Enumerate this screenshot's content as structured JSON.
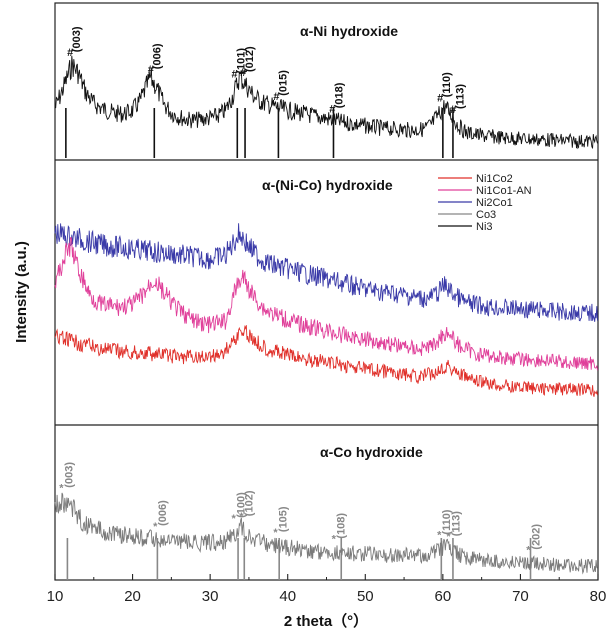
{
  "chart_data": {
    "type": "line",
    "xlabel": "2 theta（°）",
    "ylabel": "Intensity (a.u.)",
    "xlim": [
      10,
      80
    ],
    "xticks": [
      "10",
      "20",
      "30",
      "40",
      "50",
      "60",
      "70",
      "80"
    ],
    "grid": false,
    "legend_position": "middle-right",
    "panels": [
      {
        "title": "α-Ni hydroxide",
        "marker": "#",
        "marker_color": "#111111",
        "series": [
          {
            "color": "#111111",
            "points": [
              [
                10,
                0.38
              ],
              [
                11,
                0.55
              ],
              [
                12.2,
                0.78
              ],
              [
                13,
                0.7
              ],
              [
                14,
                0.52
              ],
              [
                15,
                0.42
              ],
              [
                16,
                0.38
              ],
              [
                17,
                0.35
              ],
              [
                18,
                0.33
              ],
              [
                19,
                0.33
              ],
              [
                20,
                0.36
              ],
              [
                21,
                0.45
              ],
              [
                22.3,
                0.66
              ],
              [
                23,
                0.58
              ],
              [
                24,
                0.42
              ],
              [
                25,
                0.34
              ],
              [
                26,
                0.3
              ],
              [
                27,
                0.28
              ],
              [
                28,
                0.27
              ],
              [
                29,
                0.28
              ],
              [
                30,
                0.29
              ],
              [
                31,
                0.31
              ],
              [
                32,
                0.36
              ],
              [
                33,
                0.5
              ],
              [
                33.8,
                0.67
              ],
              [
                34.5,
                0.6
              ],
              [
                35.5,
                0.5
              ],
              [
                36.5,
                0.44
              ],
              [
                38,
                0.4
              ],
              [
                40,
                0.36
              ],
              [
                42,
                0.33
              ],
              [
                44,
                0.3
              ],
              [
                46,
                0.27
              ],
              [
                48,
                0.24
              ],
              [
                50,
                0.22
              ],
              [
                52,
                0.2
              ],
              [
                54,
                0.19
              ],
              [
                56,
                0.18
              ],
              [
                57.5,
                0.19
              ],
              [
                58.5,
                0.23
              ],
              [
                59.5,
                0.33
              ],
              [
                60.2,
                0.4
              ],
              [
                61,
                0.33
              ],
              [
                62,
                0.22
              ],
              [
                63,
                0.16
              ],
              [
                65,
                0.13
              ],
              [
                68,
                0.11
              ],
              [
                71,
                0.1
              ],
              [
                74,
                0.09
              ],
              [
                77,
                0.08
              ],
              [
                80,
                0.08
              ]
            ]
          }
        ],
        "reference_lines": [
          11.4,
          22.8,
          33.5,
          34.5,
          38.8,
          45.9,
          60,
          61.3
        ],
        "peaks": [
          {
            "label": "(003)",
            "x": 12.2
          },
          {
            "label": "(006)",
            "x": 22.6
          },
          {
            "label": "(101)",
            "x": 33.4
          },
          {
            "label": "(012)",
            "x": 34.5
          },
          {
            "label": "(015)",
            "x": 38.8
          },
          {
            "label": "(018)",
            "x": 46.0
          },
          {
            "label": "(110)",
            "x": 59.9
          },
          {
            "label": "(113)",
            "x": 61.6
          }
        ]
      },
      {
        "title": "α-(Ni-Co) hydroxide",
        "series": [
          {
            "name": "Ni2Co1",
            "color": "#3a3aa8",
            "points": [
              [
                10,
                0.86
              ],
              [
                12,
                0.84
              ],
              [
                14,
                0.82
              ],
              [
                16,
                0.8
              ],
              [
                18,
                0.79
              ],
              [
                20,
                0.78
              ],
              [
                22,
                0.77
              ],
              [
                24,
                0.76
              ],
              [
                26,
                0.75
              ],
              [
                28,
                0.74
              ],
              [
                30,
                0.73
              ],
              [
                32,
                0.75
              ],
              [
                33.8,
                0.86
              ],
              [
                35,
                0.79
              ],
              [
                36.5,
                0.73
              ],
              [
                38,
                0.7
              ],
              [
                40,
                0.68
              ],
              [
                42,
                0.66
              ],
              [
                45,
                0.63
              ],
              [
                48,
                0.6
              ],
              [
                50,
                0.58
              ],
              [
                55,
                0.55
              ],
              [
                58,
                0.53
              ],
              [
                59.3,
                0.56
              ],
              [
                60.2,
                0.6
              ],
              [
                61.5,
                0.55
              ],
              [
                63,
                0.51
              ],
              [
                66,
                0.49
              ],
              [
                70,
                0.48
              ],
              [
                74,
                0.47
              ],
              [
                78,
                0.46
              ],
              [
                80,
                0.46
              ]
            ]
          },
          {
            "name": "Ni1Co1-AN",
            "color": "#e0409a",
            "points": [
              [
                10,
                0.6
              ],
              [
                11,
                0.72
              ],
              [
                12,
                0.8
              ],
              [
                13,
                0.68
              ],
              [
                14.5,
                0.55
              ],
              [
                16,
                0.5
              ],
              [
                18,
                0.49
              ],
              [
                20,
                0.5
              ],
              [
                21.5,
                0.56
              ],
              [
                22.8,
                0.63
              ],
              [
                24,
                0.56
              ],
              [
                26,
                0.47
              ],
              [
                28,
                0.42
              ],
              [
                30,
                0.4
              ],
              [
                32,
                0.42
              ],
              [
                33.5,
                0.6
              ],
              [
                34.2,
                0.64
              ],
              [
                35.5,
                0.55
              ],
              [
                37,
                0.48
              ],
              [
                39,
                0.44
              ],
              [
                41,
                0.41
              ],
              [
                44,
                0.38
              ],
              [
                47,
                0.35
              ],
              [
                50,
                0.33
              ],
              [
                54,
                0.3
              ],
              [
                57,
                0.28
              ],
              [
                58.8,
                0.3
              ],
              [
                60.5,
                0.37
              ],
              [
                62,
                0.3
              ],
              [
                64,
                0.26
              ],
              [
                67,
                0.24
              ],
              [
                70,
                0.23
              ],
              [
                74,
                0.22
              ],
              [
                77,
                0.21
              ],
              [
                80,
                0.21
              ]
            ]
          },
          {
            "name": "Ni1Co2",
            "color": "#e0302a",
            "points": [
              [
                10,
                0.34
              ],
              [
                12,
                0.32
              ],
              [
                14,
                0.3
              ],
              [
                16,
                0.28
              ],
              [
                18,
                0.27
              ],
              [
                20,
                0.26
              ],
              [
                22,
                0.26
              ],
              [
                24,
                0.25
              ],
              [
                26,
                0.24
              ],
              [
                28,
                0.24
              ],
              [
                30,
                0.24
              ],
              [
                32,
                0.27
              ],
              [
                33.5,
                0.35
              ],
              [
                34.5,
                0.37
              ],
              [
                35.5,
                0.33
              ],
              [
                37,
                0.29
              ],
              [
                39,
                0.26
              ],
              [
                41,
                0.24
              ],
              [
                44,
                0.22
              ],
              [
                47,
                0.2
              ],
              [
                50,
                0.18
              ],
              [
                54,
                0.16
              ],
              [
                57,
                0.14
              ],
              [
                58.8,
                0.16
              ],
              [
                60.5,
                0.2
              ],
              [
                62,
                0.16
              ],
              [
                64,
                0.12
              ],
              [
                67,
                0.1
              ],
              [
                70,
                0.09
              ],
              [
                74,
                0.08
              ],
              [
                77,
                0.08
              ],
              [
                80,
                0.07
              ]
            ]
          }
        ],
        "legend": [
          {
            "label": "Ni1Co2",
            "color": "#e0302a"
          },
          {
            "label": "Ni1Co1-AN",
            "color": "#e0409a"
          },
          {
            "label": "Ni2Co1",
            "color": "#3a3aa8"
          },
          {
            "label": "Co3",
            "color": "#888888"
          },
          {
            "label": "Ni3",
            "color": "#111111"
          }
        ]
      },
      {
        "title": "α-Co hydroxide",
        "marker": "*",
        "marker_color": "#888888",
        "series": [
          {
            "color": "#7a7a7a",
            "points": [
              [
                10,
                0.6
              ],
              [
                11,
                0.66
              ],
              [
                12,
                0.62
              ],
              [
                13,
                0.52
              ],
              [
                14,
                0.45
              ],
              [
                16,
                0.4
              ],
              [
                18,
                0.37
              ],
              [
                20,
                0.35
              ],
              [
                22,
                0.33
              ],
              [
                24,
                0.31
              ],
              [
                26,
                0.3
              ],
              [
                28,
                0.29
              ],
              [
                30,
                0.29
              ],
              [
                32,
                0.31
              ],
              [
                33.3,
                0.38
              ],
              [
                34,
                0.43
              ],
              [
                35,
                0.36
              ],
              [
                36.5,
                0.3
              ],
              [
                38,
                0.27
              ],
              [
                40,
                0.25
              ],
              [
                42,
                0.23
              ],
              [
                45,
                0.21
              ],
              [
                48,
                0.2
              ],
              [
                51,
                0.19
              ],
              [
                55,
                0.18
              ],
              [
                58,
                0.18
              ],
              [
                59.5,
                0.22
              ],
              [
                60.3,
                0.26
              ],
              [
                61.5,
                0.21
              ],
              [
                63,
                0.16
              ],
              [
                65,
                0.14
              ],
              [
                68,
                0.12
              ],
              [
                71,
                0.11
              ],
              [
                74,
                0.1
              ],
              [
                77,
                0.09
              ],
              [
                80,
                0.09
              ]
            ]
          }
        ],
        "reference_lines": [
          11.6,
          23.2,
          33.6,
          34.4,
          38.9,
          46.9,
          59.8,
          61.3,
          71.3
        ],
        "peaks": [
          {
            "label": "(003)",
            "x": 11.2
          },
          {
            "label": "(006)",
            "x": 23.3
          },
          {
            "label": "(100)",
            "x": 33.4
          },
          {
            "label": "(102)",
            "x": 34.4
          },
          {
            "label": "(105)",
            "x": 38.8
          },
          {
            "label": "(108)",
            "x": 46.3
          },
          {
            "label": "(110)",
            "x": 59.9
          },
          {
            "label": "(113)",
            "x": 61.1
          },
          {
            "label": "(202)",
            "x": 71.4
          }
        ]
      }
    ]
  }
}
